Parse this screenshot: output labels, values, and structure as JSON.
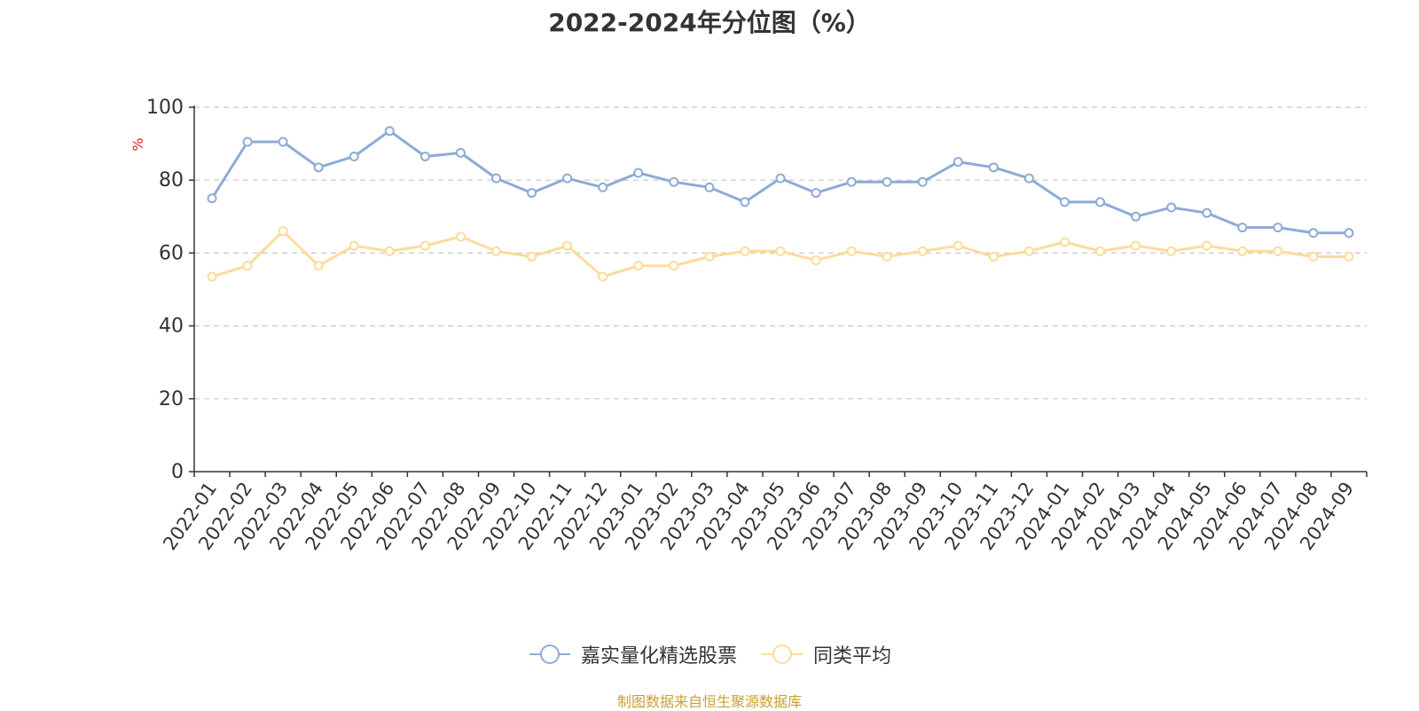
{
  "chart_data": {
    "type": "line",
    "title": "2022-2024年分位图（%）",
    "ylabel": "%",
    "ylim": [
      0,
      100
    ],
    "yticks": [
      0,
      20,
      40,
      60,
      80,
      100
    ],
    "grid": true,
    "legend_placement": "bottom-center",
    "categories": [
      "2022-01",
      "2022-02",
      "2022-03",
      "2022-04",
      "2022-05",
      "2022-06",
      "2022-07",
      "2022-08",
      "2022-09",
      "2022-10",
      "2022-11",
      "2022-12",
      "2023-01",
      "2023-02",
      "2023-03",
      "2023-04",
      "2023-05",
      "2023-06",
      "2023-07",
      "2023-08",
      "2023-09",
      "2023-10",
      "2023-11",
      "2023-12",
      "2024-01",
      "2024-02",
      "2024-03",
      "2024-04",
      "2024-05",
      "2024-06",
      "2024-07",
      "2024-08",
      "2024-09"
    ],
    "series": [
      {
        "name": "嘉实量化精选股票",
        "color": "#8eabd7",
        "values": [
          75,
          90.5,
          90.5,
          83.5,
          86.5,
          93.5,
          86.5,
          87.5,
          80.5,
          76.5,
          80.5,
          78,
          82,
          79.5,
          78,
          74,
          80.5,
          76.5,
          79.5,
          79.5,
          79.5,
          85,
          83.5,
          80.5,
          74,
          74,
          70,
          72.5,
          71,
          67,
          67,
          65.5,
          65.5
        ]
      },
      {
        "name": "同类平均",
        "color": "#fddb9c",
        "values": [
          53.5,
          56.5,
          66,
          56.5,
          62,
          60.5,
          62,
          64.5,
          60.5,
          59,
          62,
          53.5,
          56.5,
          56.5,
          59,
          60.5,
          60.5,
          58,
          60.5,
          59,
          60.5,
          62,
          59,
          60.5,
          63,
          60.5,
          62,
          60.5,
          62,
          60.5,
          60.5,
          59,
          59
        ]
      }
    ]
  },
  "source": "制图数据来自恒生聚源数据库"
}
